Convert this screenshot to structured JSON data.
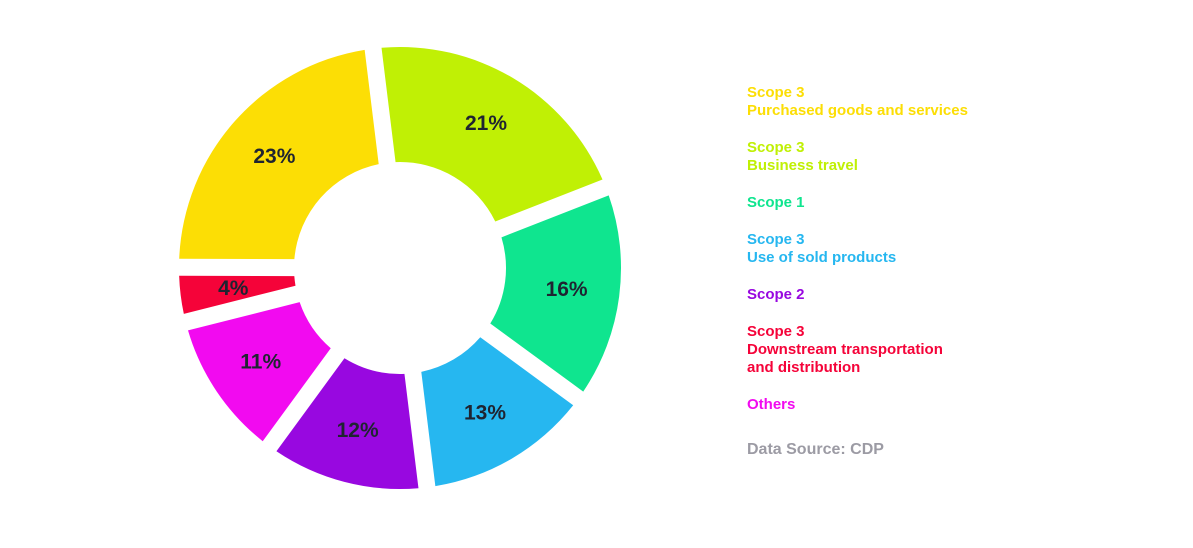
{
  "page": {
    "background": "#ffffff"
  },
  "chart_data": {
    "type": "pie",
    "variant": "donut",
    "title": "",
    "start_angle_deg": -7,
    "direction": "clockwise",
    "units": "%",
    "label_color": "#1F2431",
    "legend_position": "right",
    "segments": [
      {
        "label": "Scope 3 - Business travel",
        "value": 21,
        "display": "21%",
        "color": "#C0F005"
      },
      {
        "label": "Scope 1",
        "value": 16,
        "display": "16%",
        "color": "#0FE58F"
      },
      {
        "label": "Scope 3 - Use of sold products",
        "value": 13,
        "display": "13%",
        "color": "#26B7F0"
      },
      {
        "label": "Scope 2",
        "value": 12,
        "display": "12%",
        "color": "#9808E0"
      },
      {
        "label": "Others",
        "value": 11,
        "display": "11%",
        "color": "#F20AF0"
      },
      {
        "label": "Scope 3 - Downstream transportation and distribution",
        "value": 4,
        "display": "4%",
        "color": "#F50339"
      },
      {
        "label": "Scope 3 - Purchased goods and services",
        "value": 23,
        "display": "23%",
        "color": "#FCDE05"
      }
    ]
  },
  "legend": {
    "items": [
      {
        "lines": [
          "Scope 3",
          "Purchased goods and services"
        ],
        "color": "#FCDE05"
      },
      {
        "lines": [
          "Scope 3",
          "Business travel"
        ],
        "color": "#C0F005"
      },
      {
        "lines": [
          "Scope 1"
        ],
        "color": "#0FE58F"
      },
      {
        "lines": [
          "Scope 3",
          "Use of sold products"
        ],
        "color": "#26B7F0"
      },
      {
        "lines": [
          "Scope 2"
        ],
        "color": "#9808E0"
      },
      {
        "lines": [
          "Scope 3",
          "Downstream transportation",
          "and distribution"
        ],
        "color": "#F50339"
      },
      {
        "lines": [
          "Others"
        ],
        "color": "#F20AF0"
      }
    ],
    "data_source": "Data Source: CDP",
    "data_source_color": "#9C9BA4"
  }
}
